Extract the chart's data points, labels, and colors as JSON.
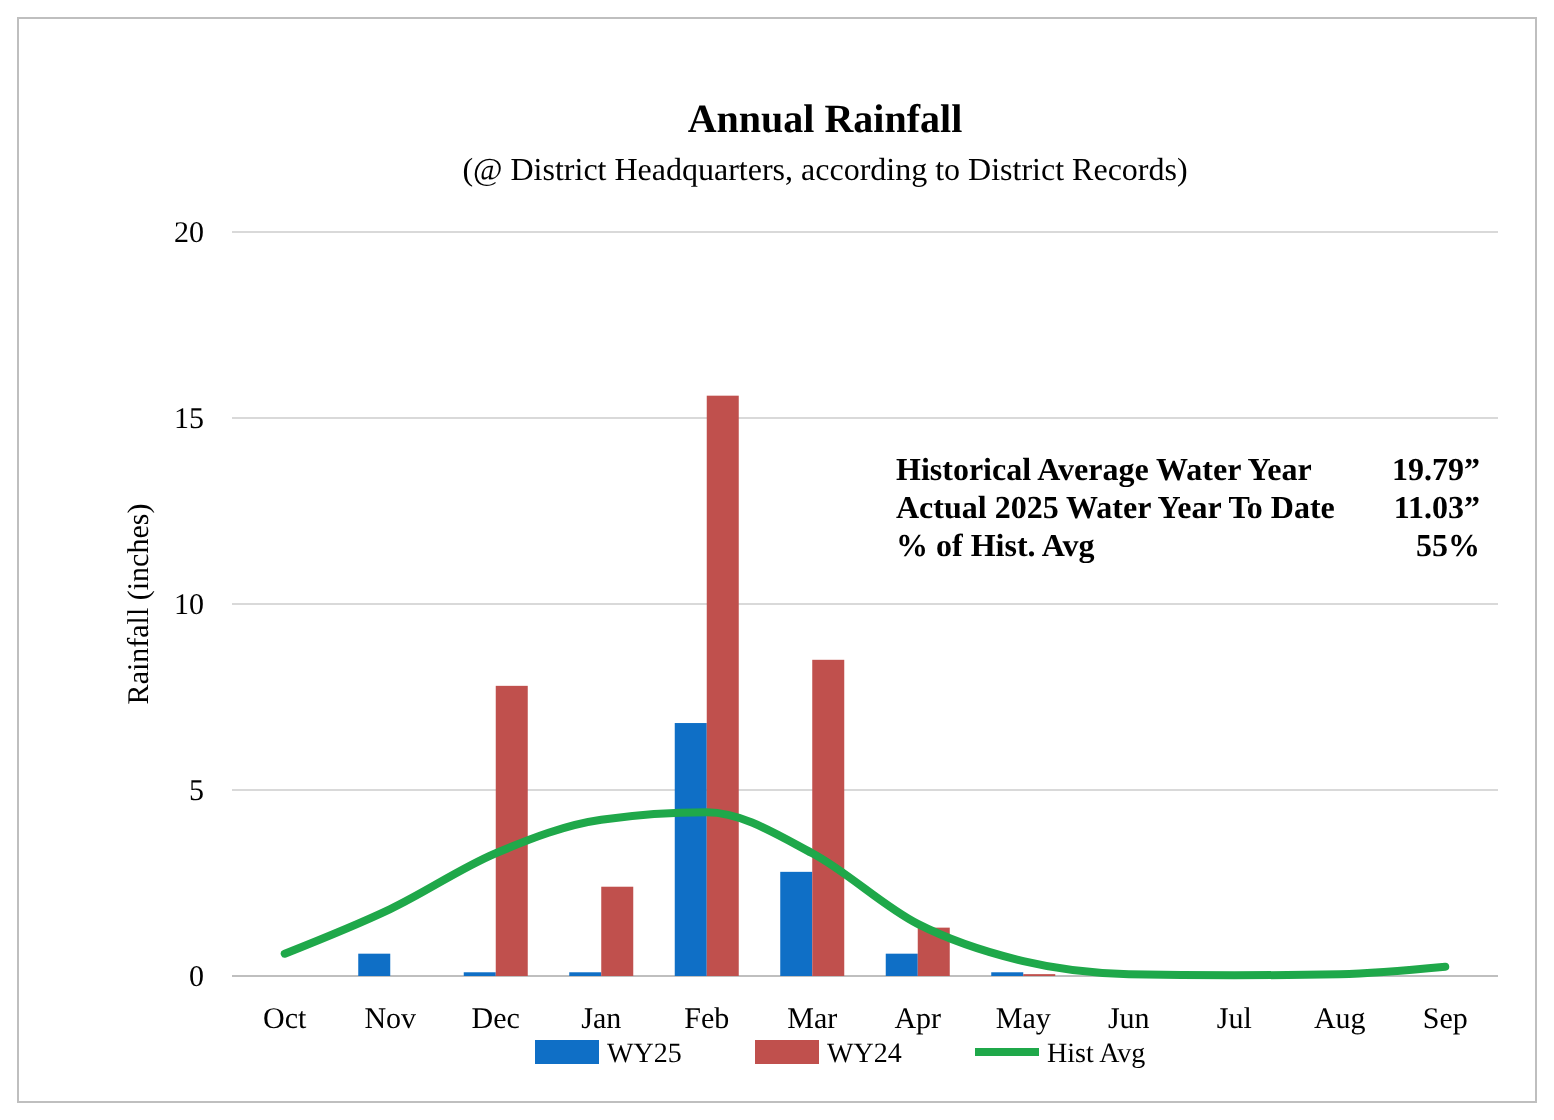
{
  "chart_data": {
    "type": "bar",
    "title": "Annual Rainfall",
    "subtitle": "(@ District Headquarters, according to District Records)",
    "ylabel": "Rainfall (inches)",
    "categories": [
      "Oct",
      "Nov",
      "Dec",
      "Jan",
      "Feb",
      "Mar",
      "Apr",
      "May",
      "Jun",
      "Jul",
      "Aug",
      "Sep"
    ],
    "series": [
      {
        "name": "WY25",
        "color": "#0f6fc6",
        "values": [
          0,
          0.6,
          0.1,
          0.1,
          6.8,
          2.8,
          0.6,
          0.1,
          0,
          0,
          0,
          0
        ]
      },
      {
        "name": "WY24",
        "color": "#c0504d",
        "values": [
          0,
          0,
          7.8,
          2.4,
          15.6,
          8.5,
          1.3,
          0.05,
          0,
          0,
          0,
          0
        ]
      },
      {
        "name": "Hist Avg",
        "type": "line",
        "color": "#1fa84a",
        "values": [
          0.6,
          1.8,
          3.3,
          4.2,
          4.4,
          3.3,
          1.4,
          0.4,
          0.05,
          0.02,
          0.05,
          0.25
        ]
      }
    ],
    "ylim": [
      0,
      20
    ],
    "yticks": [
      0,
      5,
      10,
      15,
      20
    ],
    "grid": "y",
    "legend": "bottom",
    "annotations": [
      "Historical Average Water Year",
      "19.79”",
      "Actual 2025 Water Year To Date",
      "11.03”",
      "% of Hist. Avg",
      "55%"
    ]
  }
}
